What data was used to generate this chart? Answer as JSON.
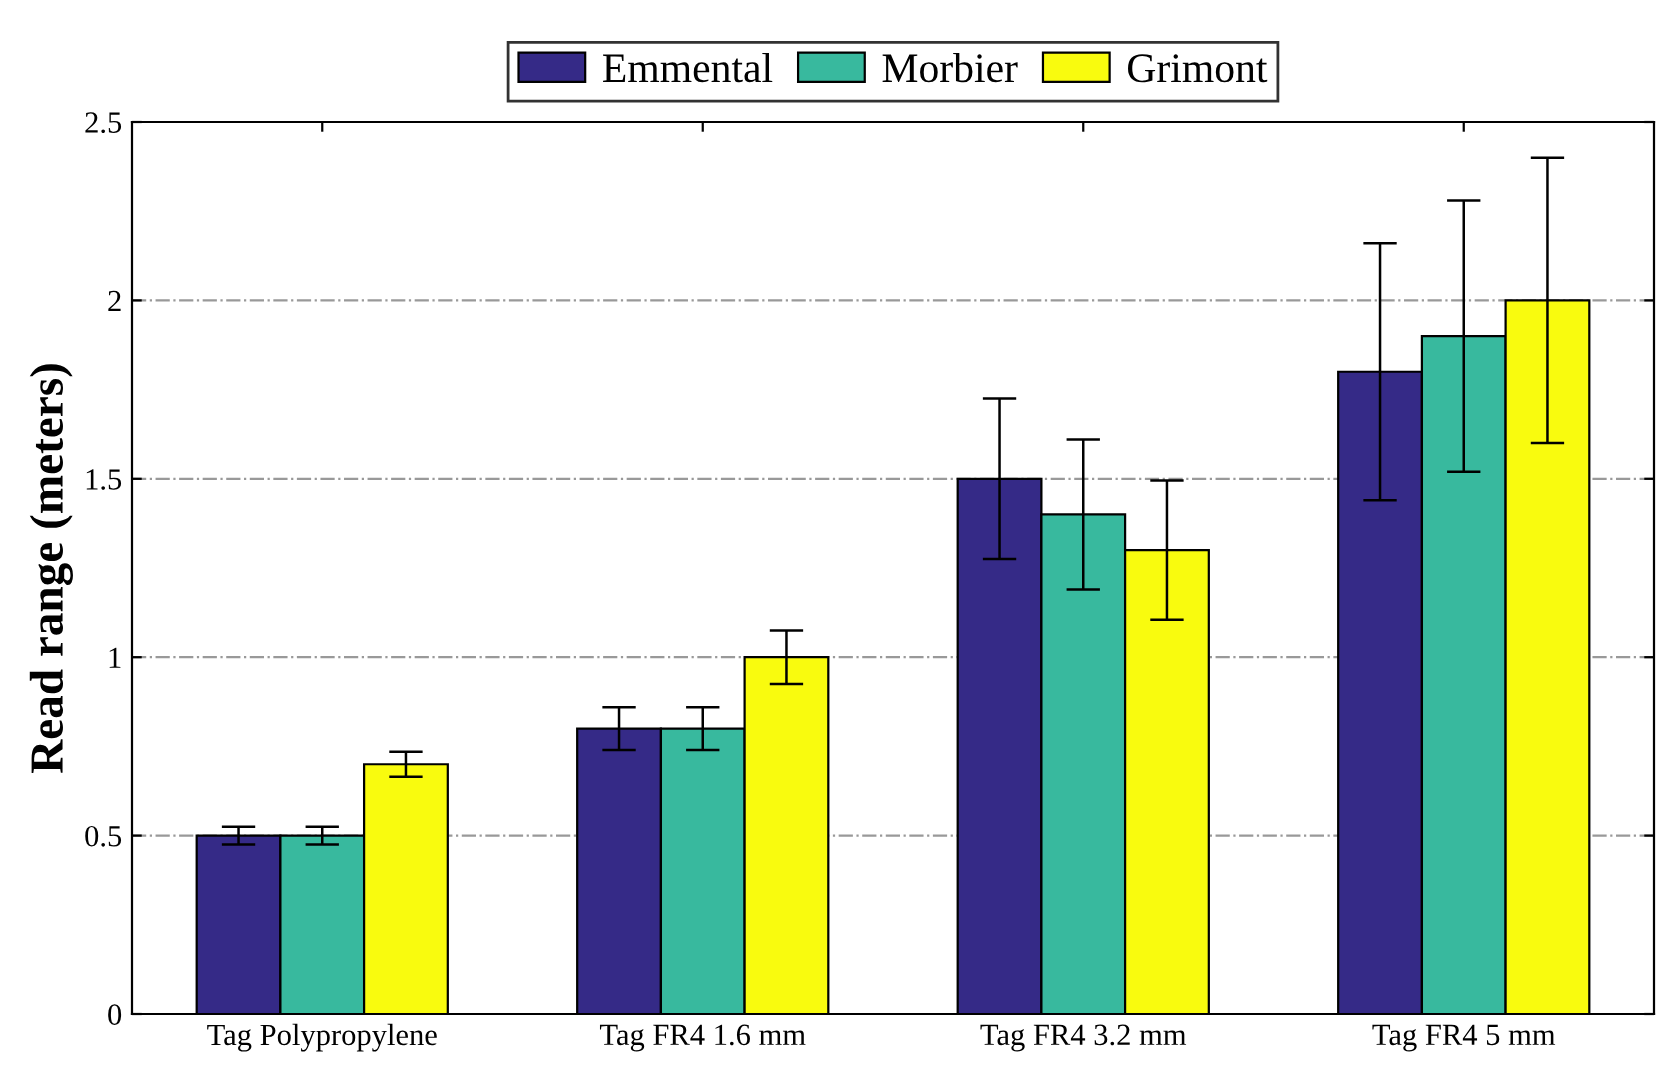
{
  "chart_data": {
    "type": "bar",
    "ylabel": "Read range (meters)",
    "categories": [
      "Tag Polypropylene",
      "Tag FR4 1.6 mm",
      "Tag FR4 3.2 mm",
      "Tag FR4 5 mm"
    ],
    "series": [
      {
        "name": "Emmental",
        "color": "#352a87",
        "values": [
          0.5,
          0.8,
          1.5,
          1.8
        ],
        "errors": [
          0.025,
          0.06,
          0.225,
          0.36
        ]
      },
      {
        "name": "Morbier",
        "color": "#38b99e",
        "values": [
          0.5,
          0.8,
          1.4,
          1.9
        ],
        "errors": [
          0.025,
          0.06,
          0.21,
          0.38
        ]
      },
      {
        "name": "Grimont",
        "color": "#f9fb0e",
        "values": [
          0.7,
          1.0,
          1.3,
          2.0
        ],
        "errors": [
          0.035,
          0.075,
          0.195,
          0.4
        ]
      }
    ],
    "ylim": [
      0,
      2.5
    ],
    "yticks": [
      0,
      0.5,
      1,
      1.5,
      2,
      2.5
    ],
    "grid": "y",
    "legend": "top"
  }
}
